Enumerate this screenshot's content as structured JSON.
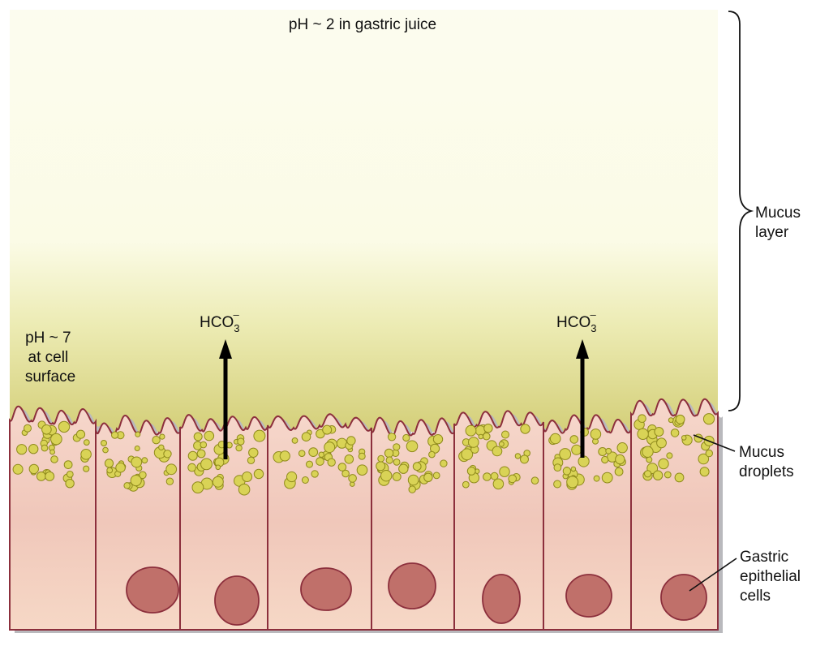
{
  "gastric_juice_label": "pH ~ 2 in gastric juice",
  "cell_surface_label": [
    "pH ~ 7",
    "at cell",
    "surface"
  ],
  "bicarbonate": {
    "base": "HCO",
    "sub": "3",
    "sup": "–"
  },
  "mucus_layer_label": [
    "Mucus",
    "layer"
  ],
  "mucus_droplets_label": [
    "Mucus",
    "droplets"
  ],
  "epithelial_cells_label": [
    "Gastric",
    "epithelial",
    "cells"
  ],
  "colors": {
    "mucus_top": "#fbfbe9",
    "mucus_bottom": "#d6d27c",
    "cell_fill": "#f3cbbb",
    "cell_outline": "#8c2f3c",
    "nucleus": "#c0706a",
    "droplet": "#d9d356",
    "droplet_outline": "#8f8a1c"
  }
}
